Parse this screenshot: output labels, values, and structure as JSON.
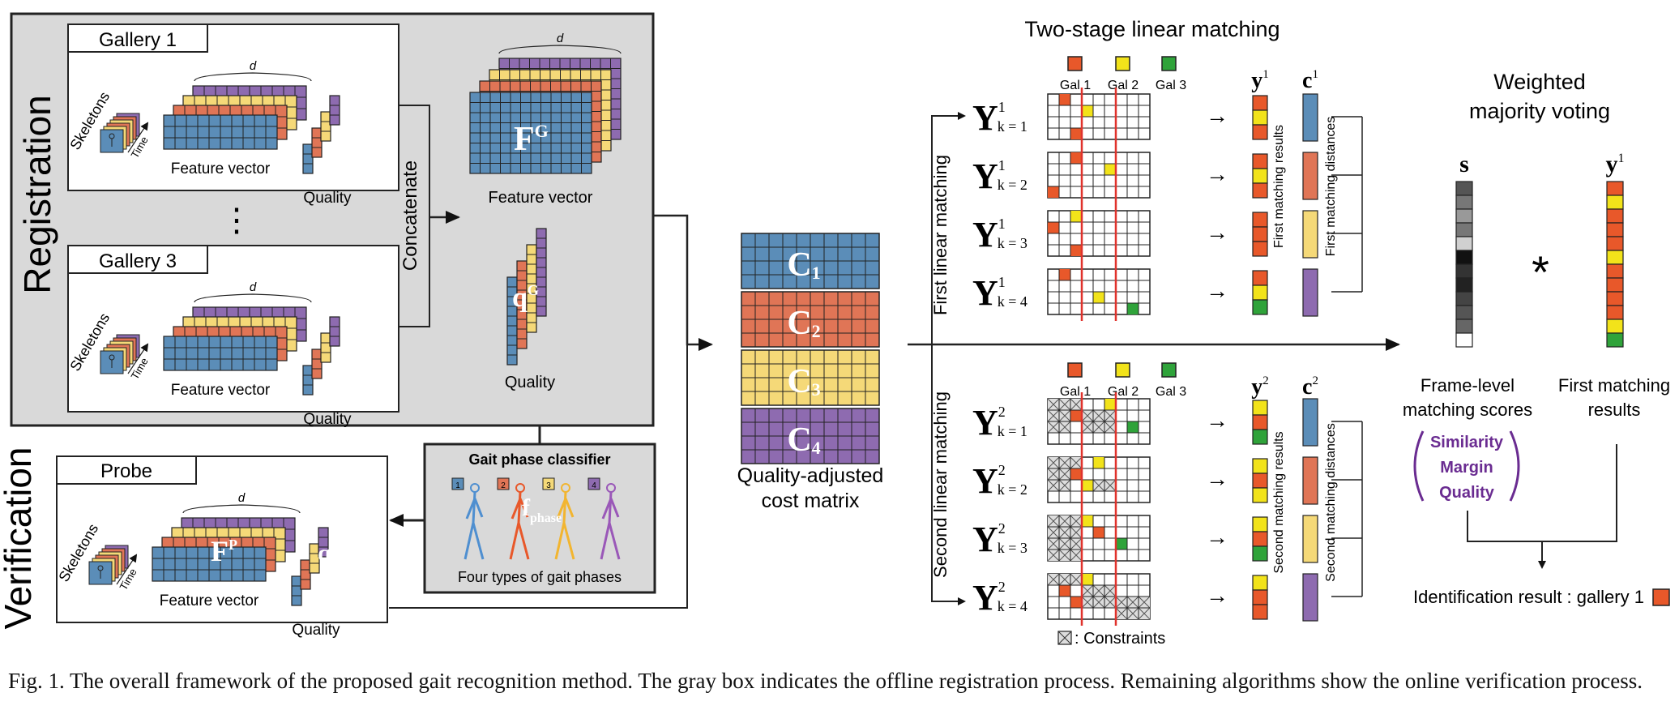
{
  "colors": {
    "blue": "#5B8DB8",
    "orange": "#E07556",
    "yellow": "#F5D978",
    "purple": "#8E6BB0",
    "panel_gray": "#D9D9D9",
    "red_line": "#E0322C",
    "green": "#3BAA3B",
    "cell_orange": "#E8582A",
    "cell_yellow": "#F2E31A",
    "cell_green": "#2FA33A",
    "accent_purple": "#6A2C91"
  },
  "left": {
    "registration_label": "Registration",
    "verification_label": "Verification",
    "gallery1_title": "Gallery 1",
    "gallery3_title": "Gallery 3",
    "probe_title": "Probe",
    "skeletons": "Skeletons",
    "time": "Time",
    "d": "d",
    "feature_vector": "Feature vector",
    "quality": "Quality",
    "ellipsis": "⋮",
    "concatenate": "Concatenate",
    "fg_main": "F",
    "fg_sup": "G",
    "qg_main": "q",
    "qg_sup": "G",
    "fp_main": "F",
    "fp_sup": "P",
    "qp_main": "q",
    "qp_sup": "P"
  },
  "classifier": {
    "title": "Gait phase classifier",
    "badges": [
      "1",
      "2",
      "3",
      "4"
    ],
    "f_main": "f",
    "f_sub": "phase",
    "caption": "Four types of gait phases"
  },
  "cost": {
    "labels": [
      "C",
      "C",
      "C",
      "C"
    ],
    "subs": [
      "1",
      "2",
      "3",
      "4"
    ],
    "caption_line1": "Quality-adjusted",
    "caption_line2": "cost matrix"
  },
  "matching": {
    "title": "Two-stage linear matching",
    "gal_labels": [
      "Gal 1",
      "Gal 2",
      "Gal 3"
    ],
    "first_label": "First linear matching",
    "second_label": "Second linear matching",
    "y_main": "Y",
    "stage_sup": [
      "1",
      "2"
    ],
    "k_labels": [
      "k = 1",
      "k = 2",
      "k = 3",
      "k = 4"
    ],
    "arrow_glyph": "→",
    "y_col": "y",
    "c_col": "c",
    "first_results": "First matching results",
    "first_distances": "First matching distances",
    "second_results": "Second matching results",
    "second_distances": "Second matching distances",
    "constraints": ": Constraints"
  },
  "voting": {
    "title_line1": "Weighted",
    "title_line2": "majority voting",
    "s_label": "s",
    "y_label": "y",
    "y_sup": "1",
    "star": "*",
    "frame_level_line1": "Frame-level",
    "frame_level_line2": "matching scores",
    "first_results_line1": "First matching",
    "first_results_line2": "results",
    "bracket_items": [
      "Similarity",
      "Margin",
      "Quality"
    ],
    "identification": "Identification result : gallery 1"
  },
  "caption": "Fig. 1.  The overall framework of the proposed gait recognition method. The gray box indicates the offline registration process. Remaining algorithms show the online verification process."
}
